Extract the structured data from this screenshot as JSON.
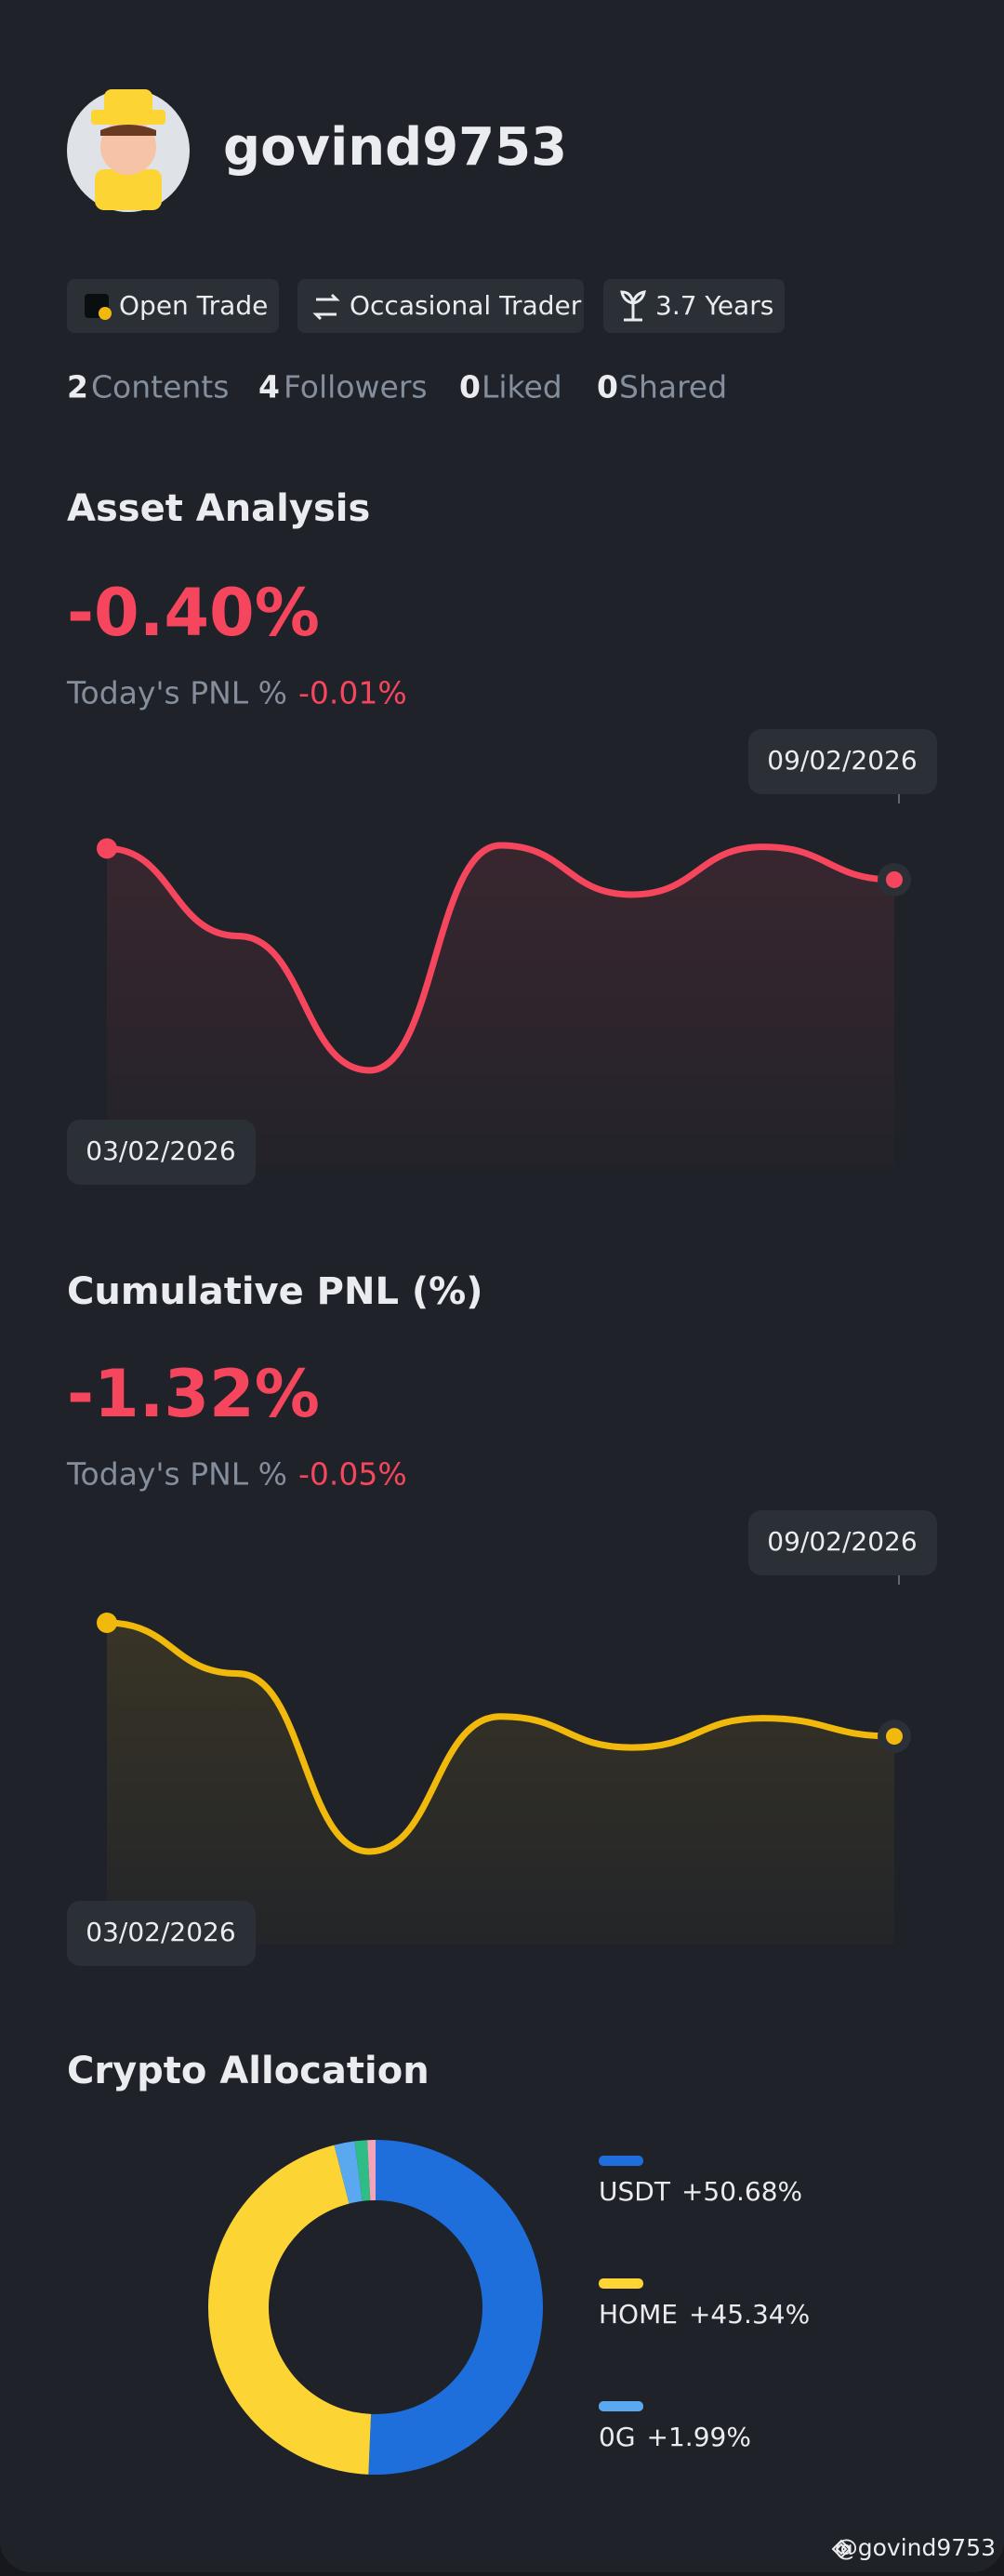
{
  "profile": {
    "username": "govind9753"
  },
  "badges": [
    "Open Trade",
    "Occasional Trader",
    "3.7 Years"
  ],
  "stats": [
    {
      "count": 2,
      "label": "Contents"
    },
    {
      "count": 4,
      "label": "Followers"
    },
    {
      "count": 0,
      "label": "Liked"
    },
    {
      "count": 0,
      "label": "Shared"
    }
  ],
  "chart_data": [
    {
      "type": "line",
      "title": "Asset Analysis",
      "headline": "-0.40%",
      "subtitle": "Today's PNL %",
      "today": "-0.01%",
      "categories": [
        "03/02/2026",
        null,
        null,
        null,
        null,
        null,
        "09/02/2026"
      ],
      "series": [
        {
          "color": "#f6465d",
          "values": [
            0,
            -1.12,
            -2.84,
            0.04,
            -0.59,
            0.02,
            -0.4
          ]
        }
      ]
    },
    {
      "type": "line",
      "title": "Cumulative PNL (%)",
      "headline": "-1.32%",
      "subtitle": "Today's PNL %",
      "today": "-0.05%",
      "categories": [
        "03/02/2026",
        null,
        null,
        null,
        null,
        null,
        "09/02/2026"
      ],
      "series": [
        {
          "color": "#f0b90b",
          "values": [
            0,
            -0.59,
            -2.66,
            -1.09,
            -1.45,
            -1.11,
            -1.32
          ]
        }
      ]
    },
    {
      "type": "pie",
      "title": "Crypto Allocation",
      "categories": [
        "USDT",
        "HOME",
        "0G",
        null,
        null
      ],
      "values": [
        50.68,
        45.34,
        1.99,
        1.2,
        0.79
      ],
      "value_labels": [
        "+50.68%",
        "+45.34%",
        "+1.99%",
        null,
        null
      ],
      "colors": [
        "#1e6fdb",
        "#fcd535",
        "#5aa9f0",
        "#2ebd85",
        "#f2a4b8"
      ]
    }
  ],
  "footer": {
    "handle": "@govind9753"
  }
}
